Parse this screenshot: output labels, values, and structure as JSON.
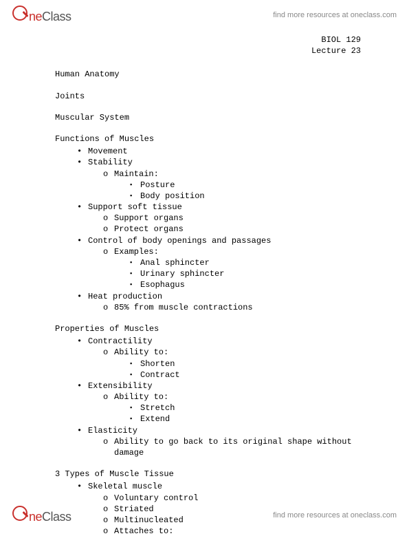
{
  "brand": {
    "one": "ne",
    "class": "Class"
  },
  "find_more": "find more resources at oneclass.com",
  "course": {
    "code": "BIOL 129",
    "lecture": "Lecture 23"
  },
  "h_anatomy": "Human Anatomy",
  "h_joints": "Joints",
  "h_muscular": "Muscular System",
  "h_functions": "Functions of Muscles",
  "functions": {
    "movement": "Movement",
    "stability": "Stability",
    "stability_sub": "Maintain:",
    "stability_a": "Posture",
    "stability_b": "Body position",
    "support": "Support soft tissue",
    "support_a": "Support organs",
    "support_b": "Protect organs",
    "control": "Control of body openings and passages",
    "control_sub": "Examples:",
    "control_a": "Anal sphincter",
    "control_b": "Urinary sphincter",
    "control_c": "Esophagus",
    "heat": "Heat production",
    "heat_a": "85% from muscle contractions"
  },
  "h_properties": "Properties of Muscles",
  "properties": {
    "contract": "Contractility",
    "contract_sub": "Ability to:",
    "contract_a": "Shorten",
    "contract_b": "Contract",
    "extens": "Extensibility",
    "extens_sub": "Ability to:",
    "extens_a": "Stretch",
    "extens_b": "Extend",
    "elast": "Elasticity",
    "elast_a": "Ability to go back to its original shape without damage"
  },
  "h_types": "3 Types of Muscle Tissue",
  "types": {
    "skeletal": "Skeletal muscle",
    "sk_a": "Voluntary control",
    "sk_b": "Striated",
    "sk_c": "Multinucleated",
    "sk_d": "Attaches to:"
  }
}
